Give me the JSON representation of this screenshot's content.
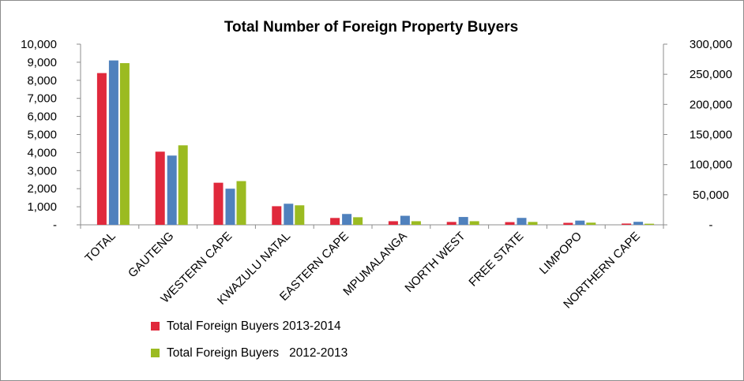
{
  "chart_data": {
    "type": "bar",
    "title": "Total Number of Foreign Property Buyers",
    "categories": [
      "TOTAL",
      "GAUTENG",
      "WESTERN CAPE",
      "KWAZULU NATAL",
      "EASTERN CAPE",
      "MPUMALANGA",
      "NORTH WEST",
      "FREE STATE",
      "LIMPOPO",
      "NORTHERN CAPE"
    ],
    "series": [
      {
        "name": "Total Foreign Buyers 2013-2014",
        "axis": "left",
        "color": "#e0293c",
        "legend": true,
        "values": [
          8400,
          4050,
          2330,
          1030,
          380,
          200,
          160,
          150,
          110,
          70
        ]
      },
      {
        "name": "",
        "axis": "right",
        "color": "#4f81bd",
        "legend": false,
        "values": [
          273000,
          115000,
          60000,
          35000,
          18000,
          15000,
          13000,
          11500,
          7000,
          5000
        ]
      },
      {
        "name": "Total Foreign Buyers   2012-2013",
        "axis": "left",
        "color": "#9bbb21",
        "legend": true,
        "values": [
          8950,
          4400,
          2420,
          1080,
          420,
          200,
          200,
          160,
          120,
          60
        ]
      }
    ],
    "y_left": {
      "min": 0,
      "max": 10000,
      "ticks": [
        "-",
        "1,000",
        "2,000",
        "3,000",
        "4,000",
        "5,000",
        "6,000",
        "7,000",
        "8,000",
        "9,000",
        "10,000"
      ]
    },
    "y_right": {
      "min": 0,
      "max": 300000,
      "ticks": [
        "-",
        "50,000",
        "100,000",
        "150,000",
        "200,000",
        "250,000",
        "300,000"
      ]
    },
    "grid": false,
    "legend_position": "bottom-left"
  }
}
